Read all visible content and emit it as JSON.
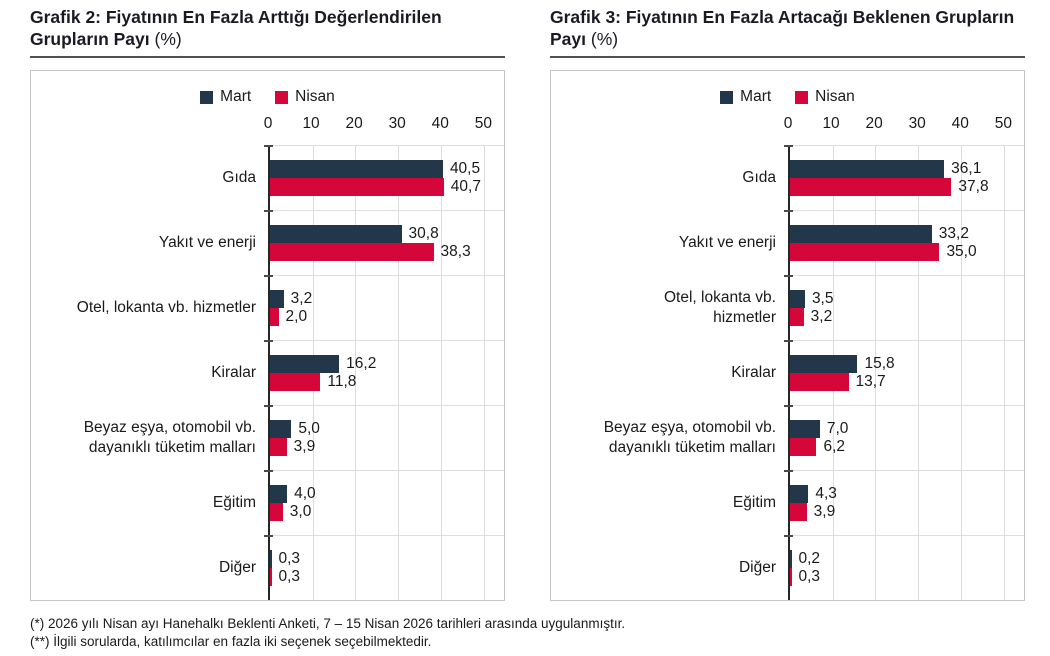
{
  "page": {
    "background": "#ffffff",
    "text_color": "#1a1a1a"
  },
  "footnotes": [
    "(*) 2026 yılı Nisan ayı Hanehalkı Beklenti Anketi, 7 – 15 Nisan 2026 tarihleri arasında uygulanmıştır.",
    "(**) İlgili sorularda, katılımcılar en fazla iki seçenek seçebilmektedir."
  ],
  "chart_data": [
    {
      "type": "bar",
      "orientation": "horizontal",
      "title": "Grafik 2: Fiyatının En Fazla Arttığı Değerlendirilen Grupların Payı",
      "title_unit": "(%)",
      "categories": [
        "Gıda",
        "Yakıt ve enerji",
        "Otel, lokanta vb. hizmetler",
        "Kiralar",
        "Beyaz eşya, otomobil vb.\ndayanıklı tüketim malları",
        "Eğitim",
        "Diğer"
      ],
      "series": [
        {
          "name": "Mart",
          "color": "#22374a",
          "values": [
            40.5,
            30.8,
            3.2,
            16.2,
            5.0,
            4.0,
            0.3
          ]
        },
        {
          "name": "Nisan",
          "color": "#d4063a",
          "values": [
            40.7,
            38.3,
            2.0,
            11.8,
            3.9,
            3.0,
            0.3
          ]
        }
      ],
      "x_ticks": [
        0,
        10,
        20,
        30,
        40,
        50
      ],
      "xlim": [
        0,
        50
      ],
      "grid": true,
      "legend_position": "top",
      "decimal_separator": ","
    },
    {
      "type": "bar",
      "orientation": "horizontal",
      "title": "Grafik 3: Fiyatının En Fazla Artacağı Beklenen Grupların Payı",
      "title_unit": "(%)",
      "categories": [
        "Gıda",
        "Yakıt ve enerji",
        "Otel, lokanta vb.\nhizmetler",
        "Kiralar",
        "Beyaz eşya, otomobil vb.\ndayanıklı tüketim malları",
        "Eğitim",
        "Diğer"
      ],
      "series": [
        {
          "name": "Mart",
          "color": "#22374a",
          "values": [
            36.1,
            33.2,
            3.5,
            15.8,
            7.0,
            4.3,
            0.2
          ]
        },
        {
          "name": "Nisan",
          "color": "#d4063a",
          "values": [
            37.8,
            35.0,
            3.2,
            13.7,
            6.2,
            3.9,
            0.3
          ]
        }
      ],
      "x_ticks": [
        0,
        10,
        20,
        30,
        40,
        50
      ],
      "xlim": [
        0,
        50
      ],
      "grid": true,
      "legend_position": "top",
      "decimal_separator": ","
    }
  ]
}
